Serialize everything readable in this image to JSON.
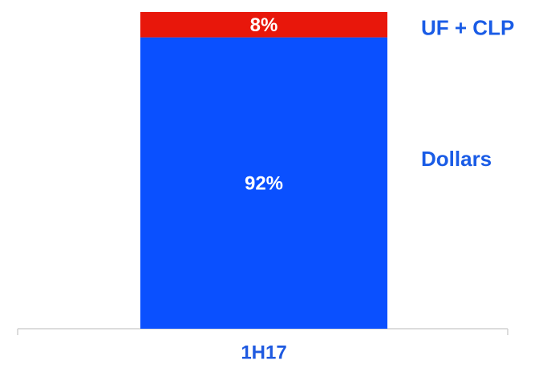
{
  "chart_data": {
    "type": "stacked_bar",
    "categories": [
      "1H17"
    ],
    "series": [
      {
        "name": "Dollars",
        "color": "#0a50ff",
        "values": [
          92
        ],
        "value_labels": [
          "92%"
        ]
      },
      {
        "name": "UF + CLP",
        "color": "#e8170b",
        "values": [
          8
        ],
        "value_labels": [
          "8%"
        ]
      }
    ],
    "ylim": [
      0,
      100
    ]
  }
}
